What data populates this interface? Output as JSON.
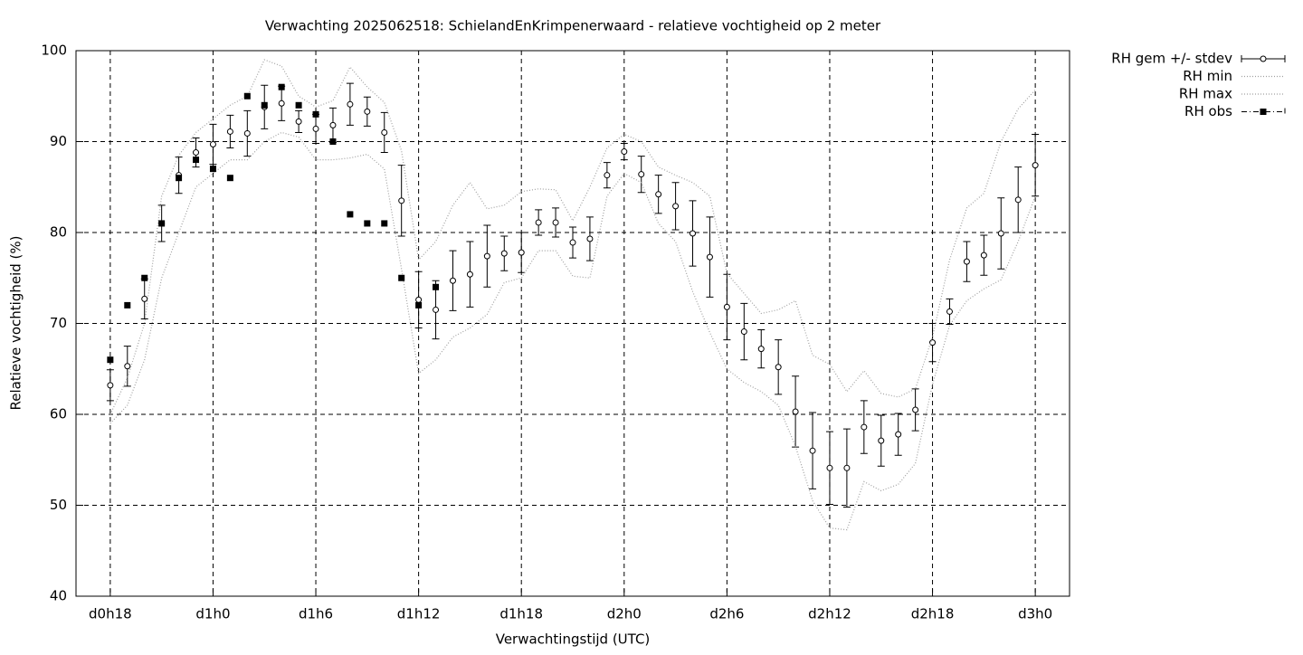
{
  "chart_data": {
    "type": "errorbar",
    "title": "Verwachting 2025062518: SchielandEnKrimpenerwaard - relatieve vochtigheid op 2 meter",
    "x_label": "Verwachtingstijd (UTC)",
    "y_label": "Relatieve vochtigheid (%)",
    "xlim": [
      16,
      74
    ],
    "ylim": [
      40,
      100
    ],
    "xticks": [
      {
        "value": 18,
        "label": "d0h18"
      },
      {
        "value": 24,
        "label": "d1h0"
      },
      {
        "value": 30,
        "label": "d1h6"
      },
      {
        "value": 36,
        "label": "d1h12"
      },
      {
        "value": 42,
        "label": "d1h18"
      },
      {
        "value": 48,
        "label": "d2h0"
      },
      {
        "value": 54,
        "label": "d2h6"
      },
      {
        "value": 60,
        "label": "d2h12"
      },
      {
        "value": 66,
        "label": "d2h18"
      },
      {
        "value": 72,
        "label": "d3h0"
      }
    ],
    "yticks": [
      40,
      50,
      60,
      70,
      80,
      90,
      100
    ],
    "grid": true,
    "legend": "outside-top-right",
    "x": [
      18,
      19,
      20,
      21,
      22,
      23,
      24,
      25,
      26,
      27,
      28,
      29,
      30,
      31,
      32,
      33,
      34,
      35,
      36,
      37,
      38,
      39,
      40,
      41,
      42,
      43,
      44,
      45,
      46,
      47,
      48,
      49,
      50,
      51,
      52,
      53,
      54,
      55,
      56,
      57,
      58,
      59,
      60,
      61,
      62,
      63,
      64,
      65,
      66,
      67,
      68,
      69,
      70,
      71,
      72
    ],
    "series": [
      {
        "name": "RH gem +/- stdev",
        "color": "#000000",
        "style": "errorbar",
        "values": [
          63.2,
          65.3,
          72.7,
          81,
          86.3,
          88.8,
          89.7,
          91.1,
          90.9,
          93.8,
          94.2,
          92.2,
          91.4,
          91.8,
          94.1,
          93.3,
          91,
          83.5,
          72.6,
          71.5,
          74.7,
          75.4,
          77.4,
          77.7,
          77.8,
          81.1,
          81.1,
          78.9,
          79.3,
          86.3,
          88.9,
          86.4,
          84.2,
          82.9,
          79.9,
          77.3,
          71.8,
          69.1,
          67.2,
          65.2,
          60.3,
          56,
          54.1,
          54.1,
          58.6,
          57.1,
          57.8,
          60.5,
          67.9,
          71.3,
          76.8,
          77.5,
          79.9,
          83.6,
          87.4
        ],
        "errors": [
          1.7,
          2.2,
          2.2,
          2,
          2,
          1.6,
          2.2,
          1.8,
          2.5,
          2.4,
          1.9,
          1.2,
          1.6,
          1.9,
          2.3,
          1.6,
          2.2,
          3.9,
          3.1,
          3.2,
          3.3,
          3.6,
          3.4,
          1.9,
          2.2,
          1.4,
          1.6,
          1.7,
          2.4,
          1.4,
          0.9,
          2,
          2.1,
          2.6,
          3.6,
          4.4,
          3.6,
          3.1,
          2.1,
          3,
          3.9,
          4.2,
          4,
          4.3,
          2.9,
          2.8,
          2.3,
          2.3,
          2.1,
          1.4,
          2.2,
          2.2,
          3.9,
          3.6,
          3.4
        ]
      },
      {
        "name": "RH min",
        "color": "#a0a0a0",
        "style": "dotted",
        "values": [
          59,
          61,
          66,
          75,
          80,
          85,
          86.5,
          88,
          88,
          90,
          91,
          90.5,
          88,
          88,
          88.2,
          88.6,
          87,
          76,
          64.5,
          66,
          68.5,
          69.5,
          71,
          74.5,
          75,
          78,
          78,
          75.2,
          75,
          84,
          86.5,
          85.5,
          81,
          79,
          73.5,
          69,
          65,
          63.5,
          62.5,
          61,
          56.5,
          50.5,
          47.5,
          47.3,
          52.6,
          51.6,
          52.3,
          54.6,
          63.3,
          69.8,
          72.5,
          73.8,
          74.8,
          79,
          84
        ]
      },
      {
        "name": "RH max",
        "color": "#a0a0a0",
        "style": "dotted",
        "values": [
          60,
          64,
          70,
          84,
          88.5,
          91,
          92.5,
          94,
          95,
          99,
          98.3,
          95,
          93.8,
          94.5,
          98.2,
          96,
          94.3,
          89,
          77,
          79,
          83,
          85.5,
          82.6,
          83,
          84.5,
          84.8,
          84.7,
          81.3,
          85,
          89.3,
          90.8,
          90,
          87.2,
          86.3,
          85.5,
          84,
          75.5,
          73.3,
          71.1,
          71.5,
          72.5,
          66.5,
          65.5,
          62.5,
          64.8,
          62.3,
          61.9,
          62.8,
          68.5,
          77,
          82.7,
          84.3,
          90,
          93.6,
          95.7
        ]
      },
      {
        "name": "RH obs",
        "color": "#000000",
        "style": "square",
        "x": [
          18,
          19,
          20,
          21,
          22,
          23,
          24,
          25,
          26,
          27,
          28,
          29,
          30,
          31,
          32,
          33,
          34,
          35,
          36,
          37
        ],
        "values": [
          66,
          72,
          75,
          81,
          86,
          88,
          87,
          86,
          95,
          94,
          96,
          94,
          93,
          90,
          82,
          81,
          81,
          75,
          72,
          74
        ]
      }
    ]
  }
}
